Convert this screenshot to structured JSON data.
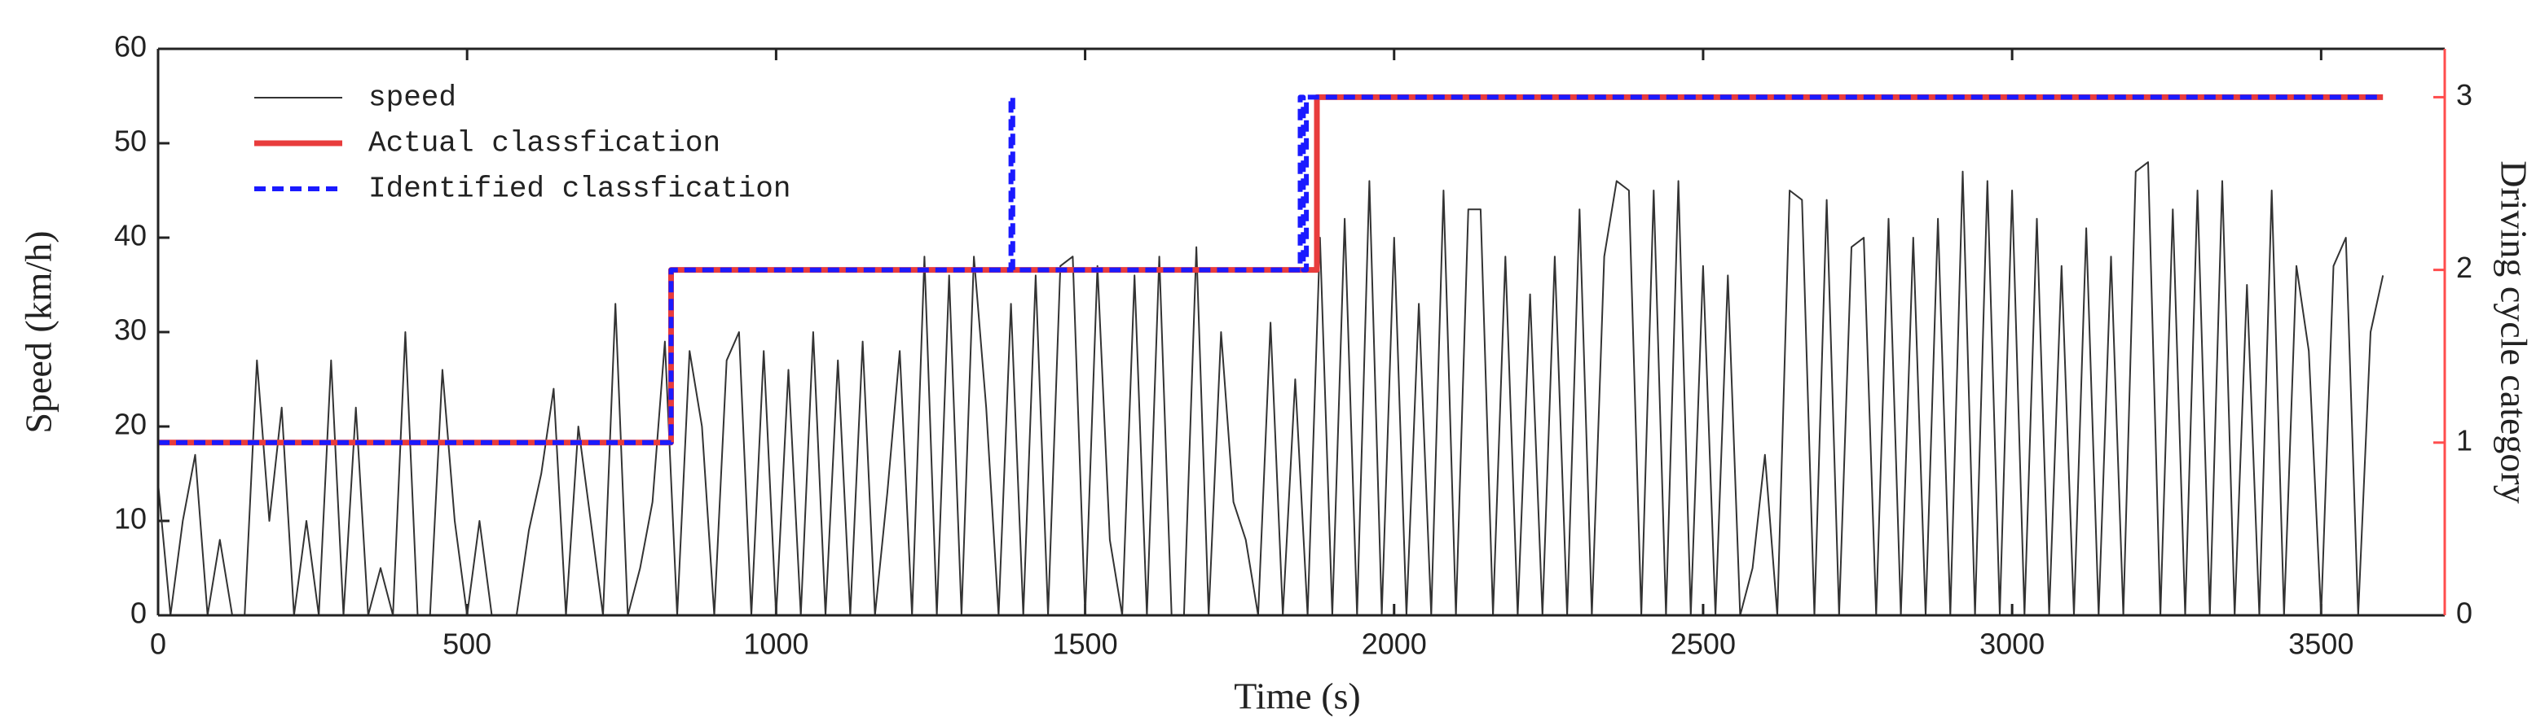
{
  "chart_data": {
    "type": "line",
    "xlabel": "Time (s)",
    "ylabel": "Speed (km/h)",
    "y2label": "Driving cycle category",
    "xlim": [
      0,
      3700
    ],
    "xticks": [
      0,
      500,
      1000,
      1500,
      2000,
      2500,
      3000,
      3500
    ],
    "ylim": [
      0,
      60
    ],
    "yticks": [
      0,
      10,
      20,
      30,
      40,
      50,
      60
    ],
    "y2lim": [
      0,
      3.28
    ],
    "y2ticks": [
      0,
      1,
      2,
      3
    ],
    "y2color": "#ff4d4d",
    "legend": "upper left",
    "series": [
      {
        "name": "speed",
        "color": "#333333",
        "style": "solid",
        "x": [
          0,
          20,
          40,
          60,
          80,
          100,
          120,
          140,
          160,
          180,
          200,
          220,
          240,
          260,
          280,
          300,
          320,
          340,
          360,
          380,
          400,
          420,
          440,
          460,
          480,
          500,
          520,
          540,
          560,
          580,
          600,
          620,
          640,
          660,
          680,
          700,
          720,
          740,
          760,
          780,
          800,
          820,
          840,
          860,
          880,
          900,
          920,
          940,
          960,
          980,
          1000,
          1020,
          1040,
          1060,
          1080,
          1100,
          1120,
          1140,
          1160,
          1180,
          1200,
          1220,
          1240,
          1260,
          1280,
          1300,
          1320,
          1340,
          1360,
          1380,
          1400,
          1420,
          1440,
          1460,
          1480,
          1500,
          1520,
          1540,
          1560,
          1580,
          1600,
          1620,
          1640,
          1660,
          1680,
          1700,
          1720,
          1740,
          1760,
          1780,
          1800,
          1820,
          1840,
          1860,
          1880,
          1900,
          1920,
          1940,
          1960,
          1980,
          2000,
          2020,
          2040,
          2060,
          2080,
          2100,
          2120,
          2140,
          2160,
          2180,
          2200,
          2220,
          2240,
          2260,
          2280,
          2300,
          2320,
          2340,
          2360,
          2380,
          2400,
          2420,
          2440,
          2460,
          2480,
          2500,
          2520,
          2540,
          2560,
          2580,
          2600,
          2620,
          2640,
          2660,
          2680,
          2700,
          2720,
          2740,
          2760,
          2780,
          2800,
          2820,
          2840,
          2860,
          2880,
          2900,
          2920,
          2940,
          2960,
          2980,
          3000,
          3020,
          3040,
          3060,
          3080,
          3100,
          3120,
          3140,
          3160,
          3180,
          3200,
          3220,
          3240,
          3260,
          3280,
          3300,
          3320,
          3340,
          3360,
          3380,
          3400,
          3420,
          3440,
          3460,
          3480,
          3500,
          3520,
          3540,
          3560,
          3580,
          3600
        ],
        "values": [
          14,
          0,
          10,
          17,
          0,
          8,
          0,
          0,
          27,
          10,
          22,
          0,
          10,
          0,
          27,
          0,
          22,
          0,
          5,
          0,
          30,
          0,
          0,
          26,
          10,
          0,
          10,
          0,
          0,
          0,
          9,
          15,
          24,
          0,
          20,
          10,
          0,
          33,
          0,
          5,
          12,
          29,
          0,
          28,
          20,
          0,
          27,
          30,
          0,
          28,
          0,
          26,
          0,
          30,
          0,
          27,
          0,
          29,
          0,
          13,
          28,
          0,
          38,
          0,
          36,
          0,
          38,
          22,
          0,
          33,
          0,
          36,
          0,
          37,
          38,
          0,
          37,
          8,
          0,
          36,
          0,
          38,
          0,
          0,
          39,
          0,
          30,
          12,
          8,
          0,
          31,
          0,
          25,
          0,
          40,
          0,
          42,
          0,
          46,
          0,
          40,
          0,
          33,
          0,
          45,
          0,
          43,
          43,
          0,
          38,
          0,
          34,
          0,
          38,
          0,
          43,
          0,
          38,
          46,
          45,
          0,
          45,
          0,
          46,
          0,
          37,
          0,
          36,
          0,
          5,
          17,
          0,
          45,
          44,
          0,
          44,
          0,
          39,
          40,
          0,
          42,
          0,
          40,
          0,
          42,
          0,
          47,
          0,
          46,
          0,
          45,
          0,
          42,
          0,
          37,
          0,
          41,
          0,
          38,
          0,
          47,
          48,
          0,
          43,
          0,
          45,
          0,
          46,
          0,
          35,
          0,
          45,
          0,
          37,
          28,
          0,
          37,
          40,
          0,
          30,
          36
        ]
      },
      {
        "name": "Actual classfication",
        "color": "#e83c3c",
        "style": "solid",
        "axis": "y2",
        "x": [
          0,
          830,
          830,
          1875,
          1875,
          3600
        ],
        "values": [
          1,
          1,
          2,
          2,
          3,
          3
        ]
      },
      {
        "name": "Identified classfication",
        "color": "#1a1aff",
        "style": "dashed",
        "axis": "y2",
        "x": [
          0,
          830,
          830,
          1380,
          1380,
          1383,
          1383,
          1848,
          1848,
          1853,
          1853,
          1858,
          1858,
          3600
        ],
        "values": [
          1,
          1,
          2,
          2,
          3,
          3,
          2,
          2,
          3,
          3,
          2,
          2,
          3,
          3
        ]
      }
    ]
  }
}
